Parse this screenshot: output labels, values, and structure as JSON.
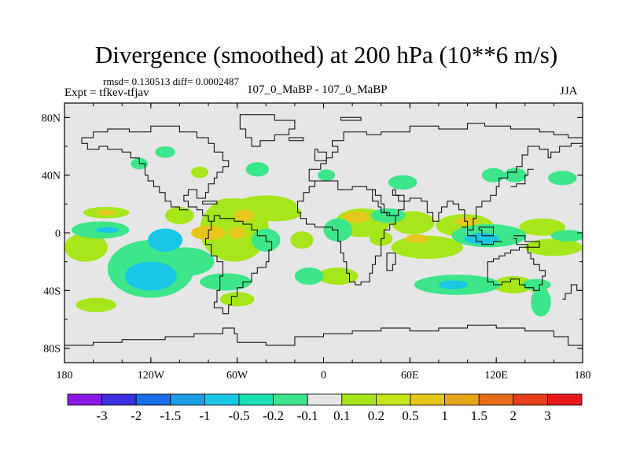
{
  "chart_data": {
    "type": "heatmap",
    "title": "Divergence (smoothed) at 200 hPa (10**6 m/s)",
    "stats": "rmsd= 0.130513 diff= 0.0002487",
    "expt_label": "Expt = tfkev-tfjav",
    "center_label": "107_0_MaBP - 107_0_MaBP",
    "season": "JJA",
    "background_color": "#e6e6e6",
    "x_ticks": [
      {
        "value": -180,
        "label": "180"
      },
      {
        "value": -120,
        "label": "120W"
      },
      {
        "value": -60,
        "label": "60W"
      },
      {
        "value": 0,
        "label": "0"
      },
      {
        "value": 60,
        "label": "60E"
      },
      {
        "value": 120,
        "label": "120E"
      },
      {
        "value": 180,
        "label": "180"
      }
    ],
    "y_ticks": [
      {
        "value": 80,
        "label": "80N"
      },
      {
        "value": 40,
        "label": "40N"
      },
      {
        "value": 0,
        "label": "0"
      },
      {
        "value": -40,
        "label": "40S"
      },
      {
        "value": -80,
        "label": "80S"
      }
    ],
    "xlim": [
      -180,
      180
    ],
    "ylim": [
      -90,
      90
    ],
    "colorbar": {
      "colors": [
        "#8b1ae6",
        "#3d2ee0",
        "#1a6ee6",
        "#1a9fe6",
        "#1ac6e6",
        "#1ae0b0",
        "#3de68b",
        "#e6e6e6",
        "#a6e61a",
        "#c6e61a",
        "#e6c61a",
        "#e6a61a",
        "#e66e1a",
        "#e63d1a",
        "#e61a1a"
      ],
      "labels": [
        "-3",
        "-2",
        "-1.5",
        "-1",
        "-0.5",
        "-0.2",
        "-0.1",
        "0.1",
        "0.2",
        "0.5",
        "1",
        "1.5",
        "2",
        "3"
      ]
    },
    "fields": [
      {
        "level": "0.1",
        "color": "#a6e61a",
        "blobs": [
          {
            "x": -151,
            "y": 14,
            "rx": 16,
            "ry": 4
          },
          {
            "x": -62,
            "y": 2,
            "rx": 24,
            "ry": 22
          },
          {
            "x": -40,
            "y": 18,
            "rx": 22,
            "ry": 8
          },
          {
            "x": -66,
            "y": 12,
            "rx": 14,
            "ry": 12
          },
          {
            "x": 27,
            "y": 7,
            "rx": 19,
            "ry": 10
          },
          {
            "x": 62,
            "y": 7,
            "rx": 15,
            "ry": 8
          },
          {
            "x": 98,
            "y": 5,
            "rx": 20,
            "ry": 8
          },
          {
            "x": 152,
            "y": 4,
            "rx": 16,
            "ry": 6
          },
          {
            "x": -165,
            "y": -10,
            "rx": 15,
            "ry": 10
          },
          {
            "x": -33,
            "y": 14,
            "rx": 18,
            "ry": 6
          },
          {
            "x": 72,
            "y": -10,
            "rx": 25,
            "ry": 8
          },
          {
            "x": 160,
            "y": -10,
            "rx": 20,
            "ry": 6
          },
          {
            "x": -100,
            "y": 12,
            "rx": 10,
            "ry": 6
          },
          {
            "x": -158,
            "y": -50,
            "rx": 14,
            "ry": 5
          },
          {
            "x": 10,
            "y": -30,
            "rx": 14,
            "ry": 6
          },
          {
            "x": 86,
            "y": -36,
            "rx": 12,
            "ry": 4
          },
          {
            "x": 132,
            "y": -36,
            "rx": 14,
            "ry": 6
          },
          {
            "x": -60,
            "y": -46,
            "rx": 12,
            "ry": 5
          },
          {
            "x": -86,
            "y": 42,
            "rx": 6,
            "ry": 4
          },
          {
            "x": 118,
            "y": 40,
            "rx": 5,
            "ry": 3
          },
          {
            "x": 40,
            "y": -4,
            "rx": 8,
            "ry": 5
          },
          {
            "x": -15,
            "y": -5,
            "rx": 8,
            "ry": 6
          }
        ]
      },
      {
        "level": "0.5",
        "color": "#e6c61a",
        "blobs": [
          {
            "x": -80,
            "y": 0,
            "rx": 12,
            "ry": 5
          },
          {
            "x": -151,
            "y": 14,
            "rx": 6,
            "ry": 2
          },
          {
            "x": -55,
            "y": 12,
            "rx": 7,
            "ry": 4
          },
          {
            "x": 23,
            "y": 11,
            "rx": 9,
            "ry": 4
          },
          {
            "x": 65,
            "y": -4,
            "rx": 8,
            "ry": 3
          },
          {
            "x": 100,
            "y": 8,
            "rx": 8,
            "ry": 3
          },
          {
            "x": 150,
            "y": -40,
            "rx": 6,
            "ry": 2
          },
          {
            "x": -60,
            "y": 0,
            "rx": 6,
            "ry": 4
          }
        ]
      },
      {
        "level": "-0.1",
        "color": "#3de68b",
        "blobs": [
          {
            "x": -155,
            "y": 2,
            "rx": 20,
            "ry": 6
          },
          {
            "x": -120,
            "y": -25,
            "rx": 30,
            "ry": 20
          },
          {
            "x": -96,
            "y": -20,
            "rx": 20,
            "ry": 10
          },
          {
            "x": -68,
            "y": -34,
            "rx": 18,
            "ry": 6
          },
          {
            "x": 10,
            "y": 2,
            "rx": 10,
            "ry": 8
          },
          {
            "x": 45,
            "y": 12,
            "rx": 12,
            "ry": 5
          },
          {
            "x": 115,
            "y": -2,
            "rx": 26,
            "ry": 8
          },
          {
            "x": 170,
            "y": -2,
            "rx": 12,
            "ry": 4
          },
          {
            "x": 93,
            "y": -36,
            "rx": 30,
            "ry": 7
          },
          {
            "x": 148,
            "y": -36,
            "rx": 10,
            "ry": 4
          },
          {
            "x": 151,
            "y": -48,
            "rx": 7,
            "ry": 10
          },
          {
            "x": -40,
            "y": -5,
            "rx": 10,
            "ry": 8
          },
          {
            "x": -46,
            "y": 44,
            "rx": 8,
            "ry": 5
          },
          {
            "x": 55,
            "y": 35,
            "rx": 10,
            "ry": 5
          },
          {
            "x": 133,
            "y": 40,
            "rx": 8,
            "ry": 5
          },
          {
            "x": 166,
            "y": 38,
            "rx": 10,
            "ry": 5
          },
          {
            "x": -110,
            "y": 56,
            "rx": 7,
            "ry": 4
          },
          {
            "x": -128,
            "y": 48,
            "rx": 6,
            "ry": 4
          },
          {
            "x": 118,
            "y": 40,
            "rx": 8,
            "ry": 5
          },
          {
            "x": 2,
            "y": 40,
            "rx": 6,
            "ry": 4
          },
          {
            "x": -10,
            "y": -30,
            "rx": 10,
            "ry": 6
          }
        ]
      },
      {
        "level": "-0.5",
        "color": "#1ac6e6",
        "blobs": [
          {
            "x": -110,
            "y": -5,
            "rx": 12,
            "ry": 8
          },
          {
            "x": -120,
            "y": -30,
            "rx": 18,
            "ry": 10
          },
          {
            "x": 110,
            "y": -4,
            "rx": 12,
            "ry": 4
          },
          {
            "x": -150,
            "y": 2,
            "rx": 8,
            "ry": 2
          },
          {
            "x": 90,
            "y": -36,
            "rx": 10,
            "ry": 3
          }
        ]
      }
    ]
  },
  "coastline_note": ""
}
